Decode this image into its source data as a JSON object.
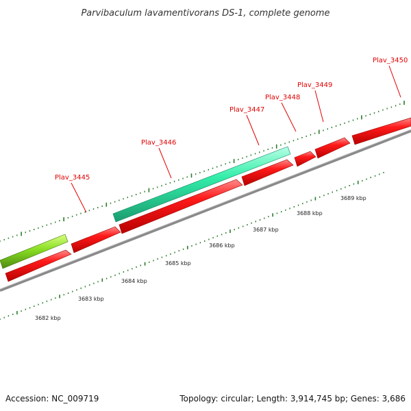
{
  "title": "Parvibaculum lavamentivorans DS-1, complete genome",
  "footer": {
    "accession": "Accession: NC_009719",
    "summary": "Topology: circular; Length: 3,914,745 bp; Genes: 3,686"
  },
  "colors": {
    "forward_gene": "#ee0000",
    "reverse_gene_teal": "#33eeaa",
    "reverse_gene_green": "#88dd22",
    "backbone": "#888888",
    "tick": "#2a7a2a",
    "label": "#e00000"
  },
  "ruler": {
    "unit": "kbp",
    "positions": [
      3682,
      3683,
      3684,
      3685,
      3686,
      3687,
      3688,
      3689
    ],
    "labels": [
      "3682 kbp",
      "3683 kbp",
      "3684 kbp",
      "3685 kbp",
      "3686 kbp",
      "3687 kbp",
      "3688 kbp",
      "3689 kbp"
    ]
  },
  "genes": [
    {
      "locus_tag": "Plav_3445"
    },
    {
      "locus_tag": "Plav_3446"
    },
    {
      "locus_tag": "Plav_3447"
    },
    {
      "locus_tag": "Plav_3448"
    },
    {
      "locus_tag": "Plav_3449"
    },
    {
      "locus_tag": "Plav_3450"
    }
  ]
}
